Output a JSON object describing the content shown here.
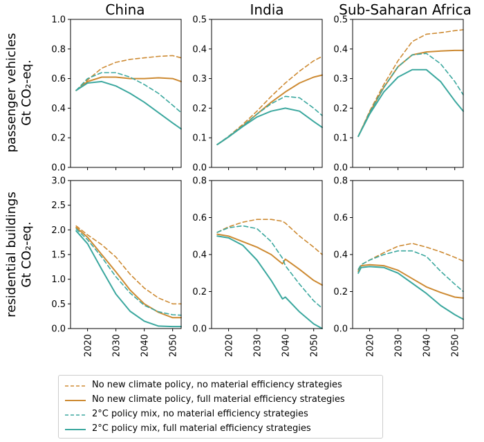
{
  "colors": {
    "orange": "#cd8a32",
    "teal": "#3aa79e",
    "axis": "#000000"
  },
  "columns": [
    "China",
    "India",
    "Sub-Saharan Africa"
  ],
  "rows": [
    {
      "label_line1": "passenger vehicles",
      "label_line2": "Gt CO₂-eq."
    },
    {
      "label_line1": "residential buildings",
      "label_line2": "Gt CO₂-eq."
    }
  ],
  "legend": [
    {
      "label": "No new climate policy, no material efficiency strategies",
      "color": "#cd8a32",
      "style": "dashed"
    },
    {
      "label": "No new climate policy, full material efficiency strategies",
      "color": "#cd8a32",
      "style": "solid"
    },
    {
      "label": "2°C policy mix, no material efficiency strategies",
      "color": "#3aa79e",
      "style": "dashed"
    },
    {
      "label": "2°C policy mix, full material efficiency strategies",
      "color": "#3aa79e",
      "style": "solid"
    }
  ],
  "chart_data": [
    {
      "type": "line",
      "region": "China",
      "sector": "passenger vehicles",
      "xlim": [
        2014,
        2053
      ],
      "ylim": [
        0,
        1.0
      ],
      "xticks": [
        2020,
        2030,
        2040,
        2050
      ],
      "yticks": [
        "0.0",
        "0.2",
        "0.4",
        "0.6",
        "0.8",
        "1.0"
      ],
      "x": [
        2016,
        2020,
        2025,
        2030,
        2035,
        2040,
        2045,
        2050,
        2053
      ],
      "series": [
        {
          "name": "No new climate policy, no material efficiency strategies",
          "values": [
            0.52,
            0.59,
            0.67,
            0.71,
            0.73,
            0.74,
            0.75,
            0.755,
            0.74
          ]
        },
        {
          "name": "No new climate policy, full material efficiency strategies",
          "values": [
            0.52,
            0.58,
            0.61,
            0.61,
            0.6,
            0.6,
            0.605,
            0.6,
            0.58
          ]
        },
        {
          "name": "2°C policy mix, no material efficiency strategies",
          "values": [
            0.52,
            0.6,
            0.64,
            0.64,
            0.61,
            0.56,
            0.5,
            0.42,
            0.37
          ]
        },
        {
          "name": "2°C policy mix, full material efficiency strategies",
          "values": [
            0.52,
            0.57,
            0.58,
            0.55,
            0.5,
            0.44,
            0.37,
            0.3,
            0.26
          ]
        }
      ]
    },
    {
      "type": "line",
      "region": "India",
      "sector": "passenger vehicles",
      "xlim": [
        2014,
        2053
      ],
      "ylim": [
        0,
        0.5
      ],
      "xticks": [
        2020,
        2030,
        2040,
        2050
      ],
      "yticks": [
        "0.0",
        "0.1",
        "0.2",
        "0.3",
        "0.4",
        "0.5"
      ],
      "x": [
        2016,
        2020,
        2025,
        2030,
        2035,
        2040,
        2045,
        2050,
        2053
      ],
      "series": [
        {
          "name": "No new climate policy, no material efficiency strategies",
          "values": [
            0.077,
            0.105,
            0.145,
            0.19,
            0.24,
            0.285,
            0.325,
            0.36,
            0.375
          ]
        },
        {
          "name": "No new climate policy, full material efficiency strategies",
          "values": [
            0.077,
            0.103,
            0.14,
            0.18,
            0.22,
            0.255,
            0.285,
            0.305,
            0.312
          ]
        },
        {
          "name": "2°C policy mix, no material efficiency strategies",
          "values": [
            0.077,
            0.105,
            0.14,
            0.18,
            0.215,
            0.24,
            0.235,
            0.2,
            0.175
          ]
        },
        {
          "name": "2°C policy mix, full material efficiency strategies",
          "values": [
            0.077,
            0.103,
            0.138,
            0.17,
            0.19,
            0.2,
            0.19,
            0.155,
            0.135
          ]
        }
      ]
    },
    {
      "type": "line",
      "region": "Sub-Saharan Africa",
      "sector": "passenger vehicles",
      "xlim": [
        2014,
        2053
      ],
      "ylim": [
        0,
        0.5
      ],
      "xticks": [
        2020,
        2030,
        2040,
        2050
      ],
      "yticks": [
        "0.0",
        "0.1",
        "0.2",
        "0.3",
        "0.4",
        "0.5"
      ],
      "x": [
        2016,
        2020,
        2025,
        2030,
        2035,
        2040,
        2045,
        2050,
        2053
      ],
      "series": [
        {
          "name": "No new climate policy, no material efficiency strategies",
          "values": [
            0.105,
            0.19,
            0.28,
            0.36,
            0.425,
            0.45,
            0.455,
            0.462,
            0.465
          ]
        },
        {
          "name": "No new climate policy, full material efficiency strategies",
          "values": [
            0.105,
            0.185,
            0.27,
            0.34,
            0.38,
            0.39,
            0.393,
            0.395,
            0.395
          ]
        },
        {
          "name": "2°C policy mix, no material efficiency strategies",
          "values": [
            0.105,
            0.185,
            0.27,
            0.34,
            0.38,
            0.385,
            0.35,
            0.29,
            0.245
          ]
        },
        {
          "name": "2°C policy mix, full material efficiency strategies",
          "values": [
            0.105,
            0.18,
            0.255,
            0.305,
            0.33,
            0.33,
            0.29,
            0.225,
            0.19
          ]
        }
      ]
    },
    {
      "type": "line",
      "region": "China",
      "sector": "residential buildings",
      "xlim": [
        2014,
        2053
      ],
      "ylim": [
        0,
        3.0
      ],
      "xticks": [
        2020,
        2030,
        2040,
        2050
      ],
      "yticks": [
        "0.0",
        "0.5",
        "1.0",
        "1.5",
        "2.0",
        "2.5",
        "3.0"
      ],
      "x": [
        2016,
        2020,
        2025,
        2030,
        2035,
        2040,
        2045,
        2050,
        2053
      ],
      "series": [
        {
          "name": "No new climate policy, no material efficiency strategies",
          "values": [
            2.08,
            1.9,
            1.7,
            1.45,
            1.1,
            0.82,
            0.62,
            0.5,
            0.5
          ]
        },
        {
          "name": "No new climate policy, full material efficiency strategies",
          "values": [
            2.05,
            1.85,
            1.5,
            1.15,
            0.78,
            0.5,
            0.33,
            0.22,
            0.22
          ]
        },
        {
          "name": "2°C policy mix, no material efficiency strategies",
          "values": [
            2.02,
            1.8,
            1.45,
            1.05,
            0.72,
            0.47,
            0.34,
            0.28,
            0.27
          ]
        },
        {
          "name": "2°C policy mix, full material efficiency strategies",
          "values": [
            1.98,
            1.72,
            1.2,
            0.7,
            0.35,
            0.15,
            0.05,
            0.04,
            0.04
          ]
        }
      ]
    },
    {
      "type": "line",
      "region": "India",
      "sector": "residential buildings",
      "xlim": [
        2014,
        2053
      ],
      "ylim": [
        0,
        0.8
      ],
      "xticks": [
        2020,
        2030,
        2040,
        2050
      ],
      "yticks": [
        "0.0",
        "0.2",
        "0.4",
        "0.6",
        "0.8"
      ],
      "x": [
        2016,
        2020,
        2025,
        2030,
        2035,
        2039,
        2040,
        2045,
        2050,
        2053
      ],
      "series": [
        {
          "name": "No new climate policy, no material efficiency strategies",
          "values": [
            0.52,
            0.55,
            0.575,
            0.59,
            0.59,
            0.58,
            0.57,
            0.5,
            0.44,
            0.4
          ]
        },
        {
          "name": "No new climate policy, full material efficiency strategies",
          "values": [
            0.51,
            0.5,
            0.47,
            0.44,
            0.4,
            0.35,
            0.375,
            0.32,
            0.26,
            0.235
          ]
        },
        {
          "name": "2°C policy mix, no material efficiency strategies",
          "values": [
            0.52,
            0.545,
            0.555,
            0.54,
            0.47,
            0.38,
            0.34,
            0.24,
            0.15,
            0.11
          ]
        },
        {
          "name": "2°C policy mix, full material efficiency strategies",
          "values": [
            0.5,
            0.49,
            0.45,
            0.37,
            0.26,
            0.16,
            0.17,
            0.09,
            0.025,
            0.0
          ]
        }
      ]
    },
    {
      "type": "line",
      "region": "Sub-Saharan Africa",
      "sector": "residential buildings",
      "xlim": [
        2014,
        2053
      ],
      "ylim": [
        0,
        0.8
      ],
      "xticks": [
        2020,
        2030,
        2040,
        2050
      ],
      "yticks": [
        "0.0",
        "0.2",
        "0.4",
        "0.6",
        "0.8"
      ],
      "x": [
        2016,
        2017,
        2020,
        2025,
        2030,
        2035,
        2040,
        2045,
        2050,
        2053
      ],
      "series": [
        {
          "name": "No new climate policy, no material efficiency strategies",
          "values": [
            0.32,
            0.345,
            0.37,
            0.41,
            0.445,
            0.46,
            0.44,
            0.415,
            0.385,
            0.365
          ]
        },
        {
          "name": "No new climate policy, full material efficiency strategies",
          "values": [
            0.31,
            0.34,
            0.345,
            0.34,
            0.315,
            0.27,
            0.225,
            0.195,
            0.17,
            0.165
          ]
        },
        {
          "name": "2°C policy mix, no material efficiency strategies",
          "values": [
            0.32,
            0.345,
            0.37,
            0.4,
            0.42,
            0.42,
            0.39,
            0.31,
            0.24,
            0.2
          ]
        },
        {
          "name": "2°C policy mix, full material efficiency strategies",
          "values": [
            0.3,
            0.33,
            0.335,
            0.33,
            0.3,
            0.245,
            0.19,
            0.125,
            0.075,
            0.05
          ]
        }
      ]
    }
  ]
}
